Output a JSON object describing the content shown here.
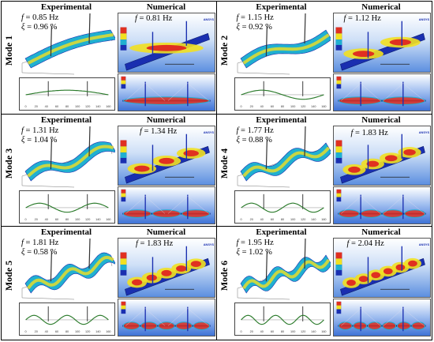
{
  "headers": {
    "experimental": "Experimental",
    "numerical": "Numerical"
  },
  "modes": [
    {
      "label": "Mode 1",
      "exp_freq": "= 0.85 Hz",
      "damping": "= 0.96 %",
      "num_freq": "= 0.81 Hz"
    },
    {
      "label": "Mode 2",
      "exp_freq": "= 1.15 Hz",
      "damping": "= 0.92 %",
      "num_freq": "= 1.12 Hz"
    },
    {
      "label": "Mode 3",
      "exp_freq": "= 1.31 Hz",
      "damping": "= 1.04 %",
      "num_freq": "= 1.34 Hz"
    },
    {
      "label": "Mode 4",
      "exp_freq": "= 1.77 Hz",
      "damping": "= 0.88 %",
      "num_freq": "= 1.83 Hz"
    },
    {
      "label": "Mode 5",
      "exp_freq": "= 1.81 Hz",
      "damping": "= 0.58 %",
      "num_freq": "= 1.83 Hz"
    },
    {
      "label": "Mode 6",
      "exp_freq": "= 1.95 Hz",
      "damping": "= 1.02 %",
      "num_freq": "= 2.04 Hz"
    }
  ],
  "symbols": {
    "frequency": "f",
    "damping": "ξ"
  },
  "ansys_logo": "ANSYS",
  "axis_ticks": [
    "0",
    "20",
    "40",
    "60",
    "80",
    "100",
    "120",
    "140",
    "160"
  ],
  "colors": {
    "contour_high": "#e03020",
    "contour_mid": "#f2e020",
    "contour_low": "#20b0d0",
    "contour_base": "#1a2fb0",
    "background_blue": "#5c8fe0"
  }
}
